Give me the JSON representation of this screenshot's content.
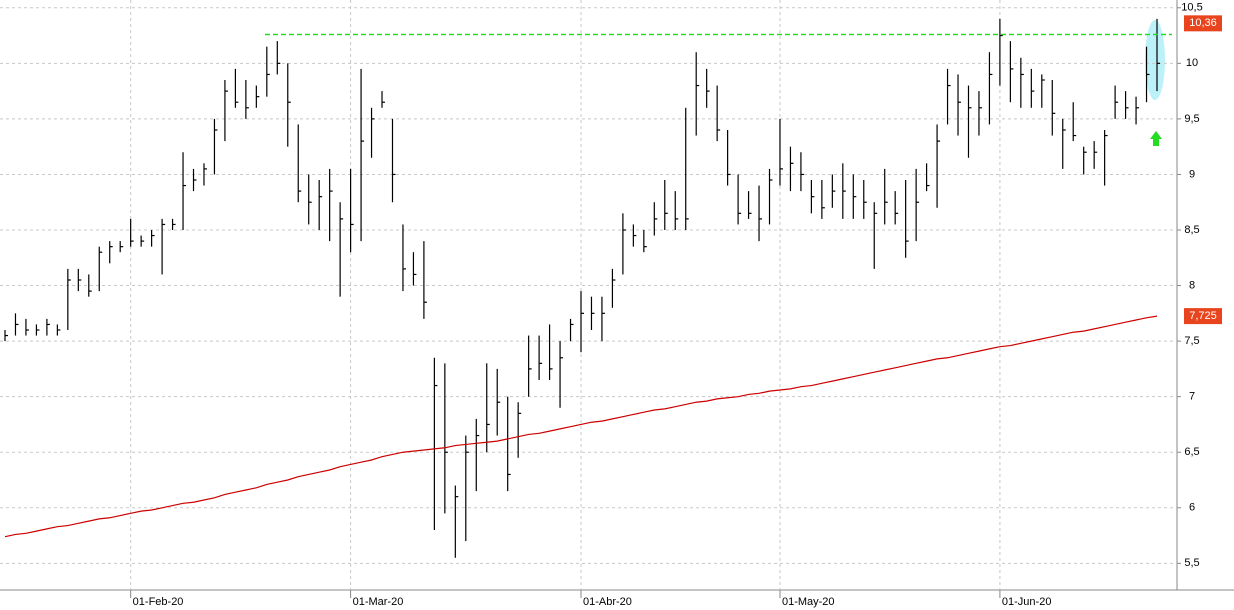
{
  "chart_data": {
    "type": "ohlc",
    "categories": [
      null,
      null,
      null,
      null,
      null,
      null,
      null,
      null,
      null,
      null,
      null,
      null,
      "01-Feb-20",
      null,
      null,
      null,
      null,
      null,
      null,
      null,
      null,
      null,
      null,
      null,
      null,
      null,
      null,
      null,
      null,
      null,
      null,
      null,
      null,
      "01-Mar-20",
      null,
      null,
      null,
      null,
      null,
      null,
      null,
      null,
      null,
      null,
      null,
      null,
      null,
      null,
      null,
      null,
      null,
      null,
      null,
      null,
      null,
      "01-Abr-20",
      null,
      null,
      null,
      null,
      null,
      null,
      null,
      null,
      null,
      null,
      null,
      null,
      null,
      null,
      null,
      null,
      null,
      null,
      "01-May-20",
      null,
      null,
      null,
      null,
      null,
      null,
      null,
      null,
      null,
      null,
      null,
      null,
      null,
      null,
      null,
      null,
      null,
      null,
      null,
      null,
      "01-Jun-20",
      null,
      null,
      null,
      null,
      null,
      null,
      null,
      null,
      null,
      null,
      null,
      null,
      null,
      null,
      null
    ],
    "ohlc": {
      "color": "#000000",
      "high": [
        7.6,
        7.75,
        7.7,
        7.65,
        7.7,
        7.65,
        8.15,
        8.15,
        8.1,
        8.35,
        8.4,
        8.4,
        8.6,
        8.45,
        8.5,
        8.6,
        8.6,
        9.2,
        9.05,
        9.1,
        9.5,
        9.85,
        9.95,
        9.85,
        9.8,
        10.15,
        10.2,
        10.0,
        9.45,
        9.0,
        8.95,
        9.05,
        8.75,
        9.05,
        9.95,
        9.6,
        9.75,
        9.5,
        8.55,
        8.3,
        8.4,
        7.35,
        7.3,
        6.2,
        6.65,
        6.8,
        7.3,
        7.25,
        7.0,
        6.95,
        7.55,
        7.55,
        7.65,
        7.5,
        7.7,
        7.95,
        7.9,
        7.9,
        8.15,
        8.65,
        8.55,
        8.5,
        8.75,
        8.95,
        8.85,
        9.6,
        10.1,
        9.95,
        9.8,
        9.4,
        9.0,
        8.85,
        8.9,
        9.05,
        9.5,
        9.25,
        9.2,
        8.95,
        8.95,
        9.0,
        9.1,
        9.0,
        8.95,
        8.75,
        9.05,
        8.85,
        8.95,
        9.05,
        9.1,
        9.45,
        9.95,
        9.9,
        9.8,
        9.75,
        10.1,
        10.4,
        10.2,
        10.05,
        9.95,
        9.9,
        9.85,
        9.5,
        9.65,
        9.25,
        9.3,
        9.4,
        9.8,
        9.75,
        9.7,
        10.15,
        10.4
      ],
      "low": [
        7.5,
        7.55,
        7.55,
        7.55,
        7.55,
        7.55,
        7.6,
        7.95,
        7.9,
        7.95,
        8.2,
        8.3,
        8.35,
        8.35,
        8.35,
        8.1,
        8.5,
        8.5,
        8.85,
        8.9,
        9.0,
        9.3,
        9.6,
        9.5,
        9.6,
        9.7,
        9.9,
        9.25,
        8.75,
        8.55,
        8.5,
        8.4,
        7.9,
        8.3,
        8.4,
        9.15,
        9.6,
        8.75,
        7.95,
        8.0,
        7.7,
        5.8,
        5.95,
        5.55,
        5.7,
        6.15,
        6.5,
        6.65,
        6.15,
        6.45,
        7.0,
        7.15,
        7.15,
        6.9,
        7.5,
        7.4,
        7.6,
        7.5,
        7.8,
        8.1,
        8.35,
        8.3,
        8.45,
        8.5,
        8.5,
        8.5,
        9.35,
        9.6,
        9.3,
        8.9,
        8.55,
        8.6,
        8.4,
        8.55,
        8.9,
        8.85,
        8.85,
        8.65,
        8.6,
        8.7,
        8.6,
        8.6,
        8.6,
        8.15,
        8.55,
        8.55,
        8.25,
        8.4,
        8.85,
        8.7,
        9.45,
        9.35,
        9.15,
        9.35,
        9.45,
        9.8,
        9.65,
        9.6,
        9.6,
        9.6,
        9.35,
        9.05,
        9.3,
        9.0,
        9.05,
        8.9,
        9.5,
        9.5,
        9.45,
        9.65,
        9.75
      ],
      "close": [
        7.55,
        7.65,
        7.6,
        7.6,
        7.65,
        7.6,
        8.05,
        8.05,
        7.95,
        8.3,
        8.35,
        8.35,
        8.4,
        8.4,
        8.45,
        8.55,
        8.55,
        8.9,
        8.95,
        9.05,
        9.4,
        9.75,
        9.65,
        9.6,
        9.7,
        9.9,
        10.0,
        9.65,
        8.85,
        8.75,
        8.8,
        8.85,
        8.6,
        8.55,
        9.3,
        9.5,
        9.65,
        9.0,
        8.15,
        8.1,
        7.85,
        7.1,
        6.5,
        6.1,
        6.5,
        6.65,
        6.75,
        6.95,
        6.3,
        6.85,
        7.25,
        7.3,
        7.25,
        7.35,
        7.65,
        7.75,
        7.75,
        7.75,
        8.05,
        8.5,
        8.45,
        8.35,
        8.6,
        8.65,
        8.6,
        8.6,
        9.8,
        9.75,
        9.4,
        9.0,
        8.65,
        8.65,
        8.6,
        8.95,
        9.05,
        9.1,
        9.0,
        8.8,
        8.7,
        8.85,
        8.85,
        8.8,
        8.75,
        8.65,
        8.75,
        8.65,
        8.4,
        8.75,
        8.9,
        9.3,
        9.8,
        9.65,
        9.6,
        9.6,
        9.9,
        10.25,
        9.95,
        9.9,
        9.75,
        9.85,
        9.55,
        9.4,
        9.35,
        9.2,
        9.2,
        9.35,
        9.65,
        9.6,
        9.6,
        9.9,
        10.0
      ]
    },
    "moving_average": {
      "color": "#cc0000",
      "values": [
        5.74,
        5.76,
        5.77,
        5.79,
        5.81,
        5.83,
        5.84,
        5.86,
        5.88,
        5.9,
        5.91,
        5.93,
        5.95,
        5.97,
        5.98,
        6.0,
        6.02,
        6.04,
        6.05,
        6.07,
        6.09,
        6.12,
        6.14,
        6.16,
        6.18,
        6.21,
        6.23,
        6.25,
        6.28,
        6.3,
        6.32,
        6.34,
        6.37,
        6.39,
        6.41,
        6.43,
        6.46,
        6.48,
        6.5,
        6.51,
        6.52,
        6.53,
        6.54,
        6.56,
        6.57,
        6.58,
        6.59,
        6.6,
        6.62,
        6.64,
        6.66,
        6.67,
        6.69,
        6.71,
        6.73,
        6.75,
        6.77,
        6.78,
        6.8,
        6.82,
        6.84,
        6.86,
        6.88,
        6.89,
        6.91,
        6.93,
        6.95,
        6.96,
        6.98,
        6.99,
        7.0,
        7.02,
        7.03,
        7.05,
        7.06,
        7.07,
        7.09,
        7.1,
        7.12,
        7.14,
        7.16,
        7.18,
        7.2,
        7.22,
        7.24,
        7.26,
        7.28,
        7.3,
        7.32,
        7.34,
        7.35,
        7.37,
        7.39,
        7.41,
        7.43,
        7.45,
        7.46,
        7.48,
        7.5,
        7.52,
        7.54,
        7.56,
        7.58,
        7.59,
        7.61,
        7.63,
        7.65,
        7.67,
        7.69,
        7.71,
        7.725
      ]
    },
    "resistance": {
      "value": 10.26,
      "color": "#22dd22"
    },
    "price_labels": [
      {
        "value": 10.36,
        "label": "10,36"
      },
      {
        "value": 7.725,
        "label": "7,725"
      }
    ],
    "price_label_color": "#e8451e",
    "ylim": [
      5.26,
      10.57
    ],
    "yticks": [
      {
        "value": 5.5,
        "label": "5,5"
      },
      6,
      {
        "value": 6.5,
        "label": "6,5"
      },
      7,
      {
        "value": 7.5,
        "label": "7,5"
      },
      8,
      {
        "value": 8.5,
        "label": "8,5"
      },
      9,
      {
        "value": 9.5,
        "label": "9,5"
      },
      10,
      {
        "value": 10.5,
        "label": "10,5"
      }
    ],
    "grid": true
  }
}
